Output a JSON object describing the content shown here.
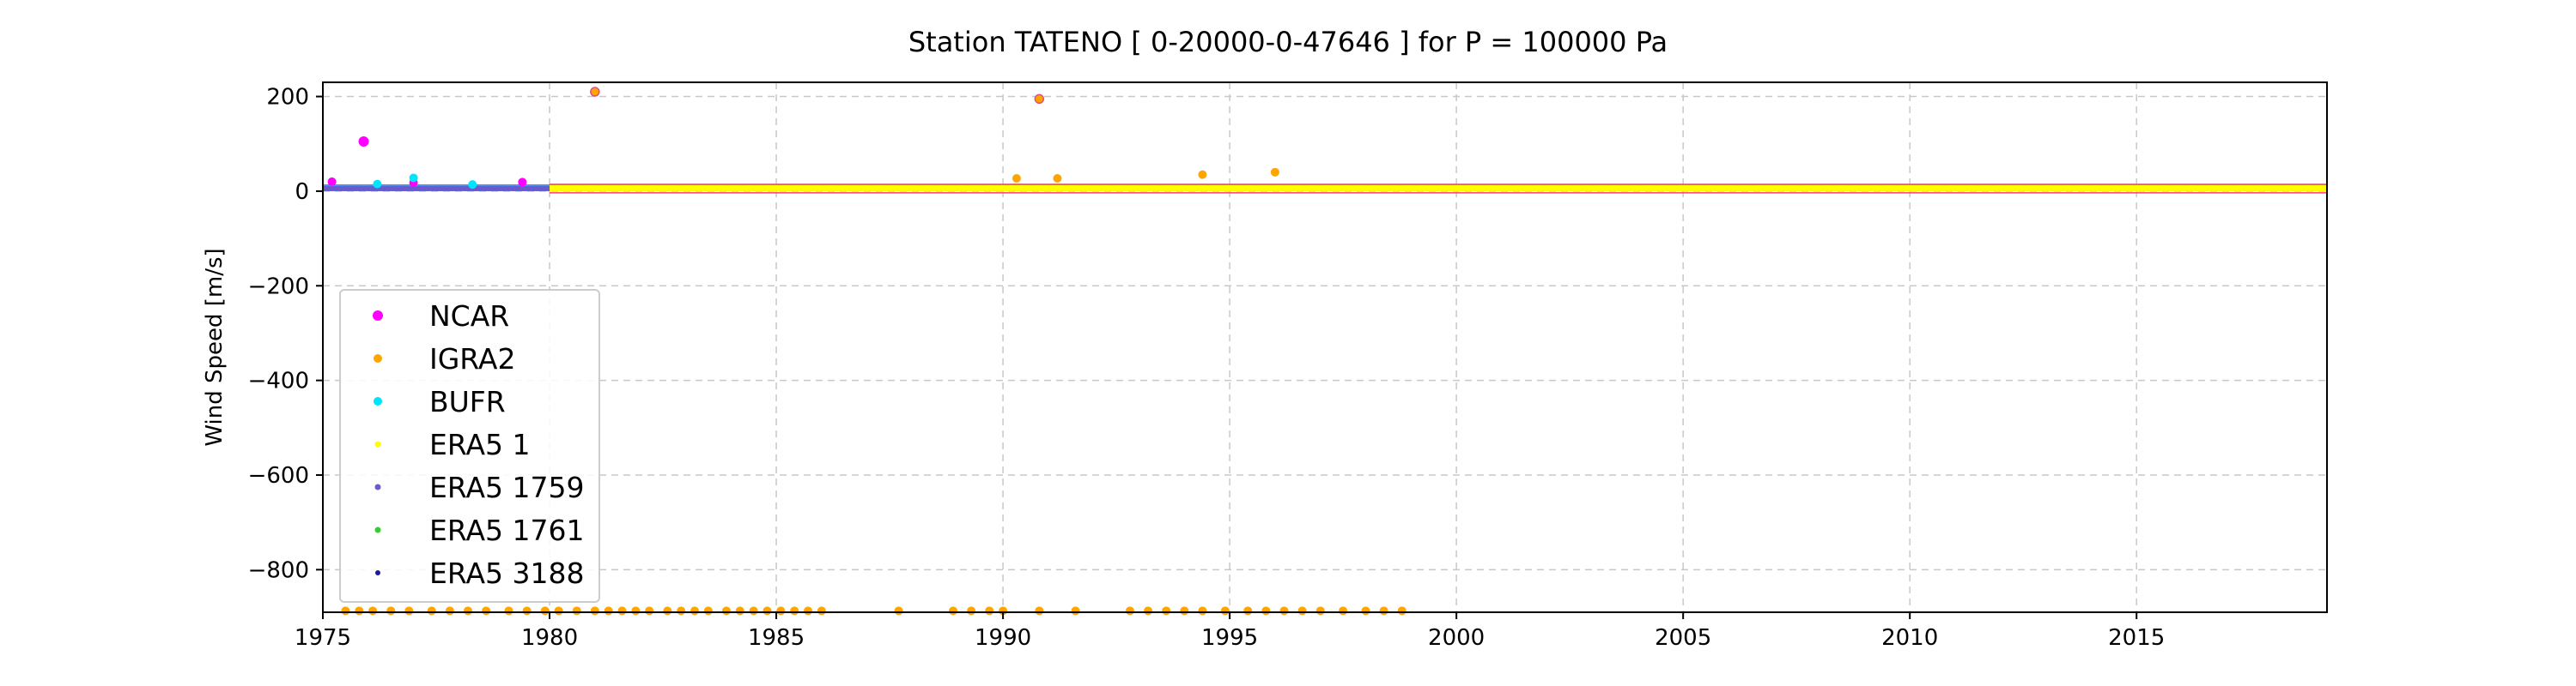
{
  "chart_data": {
    "type": "scatter",
    "title": "Station  TATENO [ 0-20000-0-47646 ]  for P = 100000 Pa",
    "xlabel": "",
    "ylabel": "Wind Speed [m/s]",
    "xlim": [
      1975,
      2019.2
    ],
    "ylim": [
      -890,
      230
    ],
    "xticks": [
      1975,
      1980,
      1985,
      1990,
      1995,
      2000,
      2005,
      2010,
      2015
    ],
    "yticks": [
      200,
      0,
      -200,
      -400,
      -600,
      -800
    ],
    "ytick_labels": [
      "200",
      "0",
      "−200",
      "−400",
      "−600",
      "−800"
    ],
    "grid": true,
    "legend_position": "lower-left",
    "series": [
      {
        "name": "NCAR",
        "color": "#ff00ff",
        "band": {
          "x_start": 1975.0,
          "x_end": 1980.0,
          "y_low": 0,
          "y_high": 14
        },
        "points": [
          [
            1975.9,
            105
          ],
          [
            1975.2,
            20
          ],
          [
            1977.0,
            18
          ],
          [
            1979.4,
            19
          ]
        ]
      },
      {
        "name": "IGRA2",
        "color": "#ffa500",
        "band": {
          "x_start": 1980.0,
          "x_end": 2019.2,
          "y_low": 0,
          "y_high": 16
        },
        "points": [
          [
            1981.0,
            210
          ],
          [
            1990.8,
            195
          ],
          [
            1990.3,
            27
          ],
          [
            1991.2,
            27
          ],
          [
            1994.4,
            35
          ],
          [
            1996.0,
            40
          ],
          [
            1975.5,
            -887
          ],
          [
            1975.8,
            -887
          ],
          [
            1976.1,
            -887
          ],
          [
            1976.5,
            -887
          ],
          [
            1976.9,
            -887
          ],
          [
            1977.4,
            -887
          ],
          [
            1977.8,
            -887
          ],
          [
            1978.2,
            -887
          ],
          [
            1978.6,
            -887
          ],
          [
            1979.1,
            -887
          ],
          [
            1979.5,
            -887
          ],
          [
            1979.9,
            -887
          ],
          [
            1980.2,
            -887
          ],
          [
            1980.6,
            -887
          ],
          [
            1981.0,
            -887
          ],
          [
            1981.3,
            -887
          ],
          [
            1981.6,
            -887
          ],
          [
            1981.9,
            -887
          ],
          [
            1982.2,
            -887
          ],
          [
            1982.6,
            -887
          ],
          [
            1982.9,
            -887
          ],
          [
            1983.2,
            -887
          ],
          [
            1983.5,
            -887
          ],
          [
            1983.9,
            -887
          ],
          [
            1984.2,
            -887
          ],
          [
            1984.5,
            -887
          ],
          [
            1984.8,
            -887
          ],
          [
            1985.1,
            -887
          ],
          [
            1985.4,
            -887
          ],
          [
            1985.7,
            -887
          ],
          [
            1986.0,
            -887
          ],
          [
            1987.7,
            -887
          ],
          [
            1988.9,
            -887
          ],
          [
            1989.3,
            -887
          ],
          [
            1989.7,
            -887
          ],
          [
            1990.0,
            -887
          ],
          [
            1990.8,
            -887
          ],
          [
            1991.6,
            -887
          ],
          [
            1992.8,
            -887
          ],
          [
            1993.2,
            -887
          ],
          [
            1993.6,
            -887
          ],
          [
            1994.0,
            -887
          ],
          [
            1994.4,
            -887
          ],
          [
            1994.9,
            -887
          ],
          [
            1995.4,
            -887
          ],
          [
            1995.8,
            -887
          ],
          [
            1996.2,
            -887
          ],
          [
            1996.6,
            -887
          ],
          [
            1997.0,
            -887
          ],
          [
            1997.5,
            -887
          ],
          [
            1998.0,
            -887
          ],
          [
            1998.4,
            -887
          ],
          [
            1998.8,
            -887
          ]
        ]
      },
      {
        "name": "BUFR",
        "color": "#00e5ff",
        "band": {
          "x_start": 1975.0,
          "x_end": 1980.0,
          "y_low": 0,
          "y_high": 12
        },
        "points": [
          [
            1977.0,
            28
          ],
          [
            1976.2,
            15
          ],
          [
            1978.3,
            14
          ]
        ]
      },
      {
        "name": "ERA5 1",
        "color": "#ffff00",
        "band": {
          "x_start": 1980.0,
          "x_end": 2019.2,
          "y_low": 0,
          "y_high": 14
        },
        "points": []
      },
      {
        "name": "ERA5 1759",
        "color": "#6a5acd",
        "band": {
          "x_start": 1975.0,
          "x_end": 1980.0,
          "y_low": 0,
          "y_high": 11
        },
        "points": []
      },
      {
        "name": "ERA5 1761",
        "color": "#32cd32",
        "band": null,
        "points": []
      },
      {
        "name": "ERA5 3188",
        "color": "#1a1aa0",
        "band": null,
        "points": []
      }
    ]
  }
}
